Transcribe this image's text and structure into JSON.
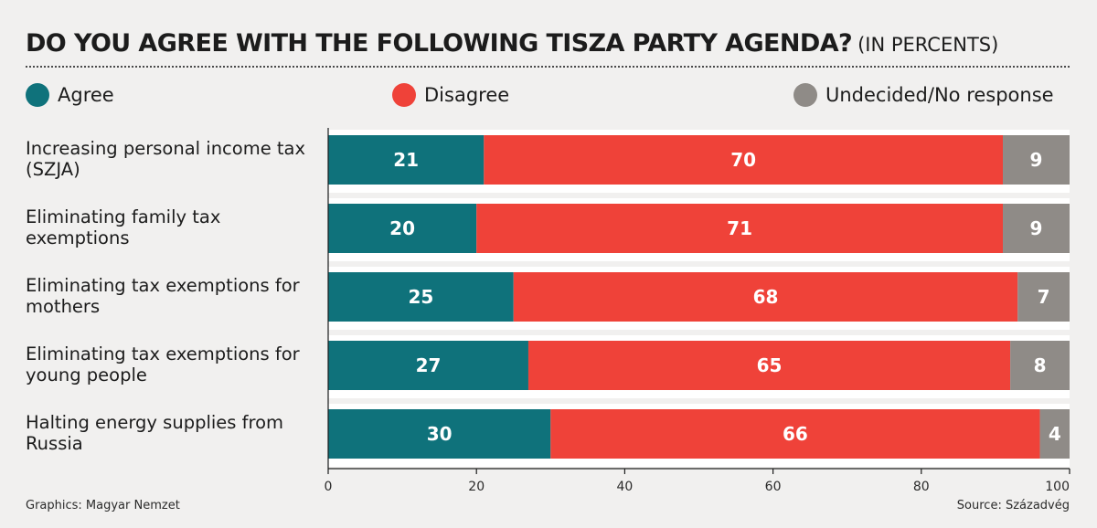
{
  "title": "DO YOU AGREE WITH THE FOLLOWING TISZA PARTY AGENDA?",
  "subtitle": "(IN PERCENTS)",
  "legend": [
    {
      "label": "Agree",
      "color": "#0f727b"
    },
    {
      "label": "Disagree",
      "color": "#ef4239"
    },
    {
      "label": "Undecided/No response",
      "color": "#8f8b87"
    }
  ],
  "categories": [
    "Increasing personal income tax (SZJA)",
    "Eliminating family tax exemptions",
    "Eliminating tax exemptions for mothers",
    "Eliminating tax exemptions for young people",
    "Halting energy supplies from Russia"
  ],
  "footer": {
    "credit": "Graphics: Magyar Nemzet",
    "source": "Source: Századvég"
  },
  "chart_data": {
    "type": "bar",
    "orientation": "horizontal",
    "stacked": true,
    "title": "DO YOU AGREE WITH THE FOLLOWING TISZA PARTY AGENDA?",
    "subtitle": "(IN PERCENTS)",
    "categories": [
      "Increasing personal income tax (SZJA)",
      "Eliminating family tax exemptions",
      "Eliminating tax exemptions for mothers",
      "Eliminating tax exemptions for young people",
      "Halting energy supplies from Russia"
    ],
    "series": [
      {
        "name": "Agree",
        "color": "#0f727b",
        "values": [
          21,
          20,
          25,
          27,
          30
        ]
      },
      {
        "name": "Disagree",
        "color": "#ef4239",
        "values": [
          70,
          71,
          68,
          65,
          66
        ]
      },
      {
        "name": "Undecided/No response",
        "color": "#8f8b87",
        "values": [
          9,
          9,
          7,
          8,
          4
        ]
      }
    ],
    "xlim": [
      0,
      100
    ],
    "xticks": [
      0,
      20,
      40,
      60,
      80,
      100
    ],
    "xlabel": "",
    "ylabel": "",
    "grid": false,
    "legend_position": "top"
  }
}
